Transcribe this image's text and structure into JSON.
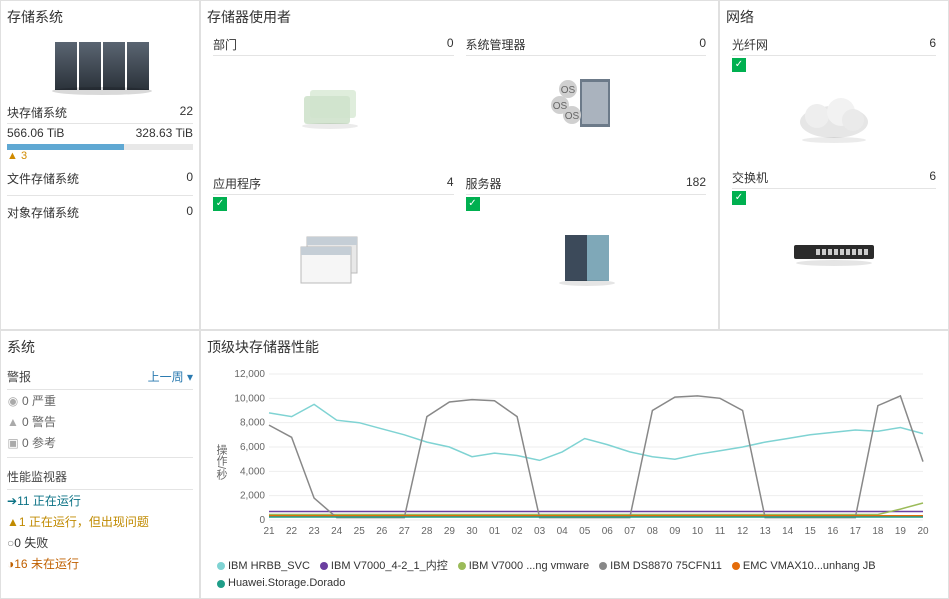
{
  "storage": {
    "title": "存储系统",
    "block": {
      "label": "块存储系统",
      "value": "22"
    },
    "cap_used": "566.06 TiB",
    "cap_total": "328.63 TiB",
    "bar_pct": 63,
    "bar_fill": "#5fa8d3",
    "bar_bg": "#e8e8e8",
    "warn_count": "3",
    "file": {
      "label": "文件存储系统",
      "value": "0"
    },
    "obj": {
      "label": "对象存储系统",
      "value": "0"
    }
  },
  "users": {
    "title": "存储器使用者",
    "cells": {
      "dept": {
        "label": "部门",
        "value": "0",
        "check": false
      },
      "sysmgr": {
        "label": "系统管理器",
        "value": "0",
        "check": false
      },
      "app": {
        "label": "应用程序",
        "value": "4",
        "check": true
      },
      "server": {
        "label": "服务器",
        "value": "182",
        "check": true
      }
    }
  },
  "network": {
    "title": "网络",
    "fc": {
      "label": "光纤网",
      "value": "6",
      "check": true
    },
    "sw": {
      "label": "交换机",
      "value": "6",
      "check": true
    }
  },
  "system": {
    "title": "系统",
    "alarms_label": "警报",
    "dropdown": "上一周 ▾",
    "alarms": {
      "severe": {
        "count": "0",
        "label": "严重"
      },
      "warn": {
        "count": "0",
        "label": "警告"
      },
      "ref": {
        "count": "0",
        "label": "参考"
      }
    },
    "perf_label": "性能监视器",
    "perf": {
      "running": {
        "count": "11",
        "label": "正在运行"
      },
      "warnrun": {
        "count": "1",
        "label": "正在运行，但出现问题"
      },
      "failed": {
        "count": "0",
        "label": "失败"
      },
      "stopped": {
        "count": "16",
        "label": "未在运行"
      }
    }
  },
  "topchart": {
    "title": "顶级块存储器性能",
    "type": "line",
    "ylabel": "操作/秒",
    "ylim": [
      0,
      12000
    ],
    "yticks": [
      0,
      2000,
      4000,
      6000,
      8000,
      10000,
      12000
    ],
    "ytick_labels": [
      "0",
      "2,000",
      "4,000",
      "6,000",
      "8,000",
      "10,000",
      "12,000"
    ],
    "xticks": [
      "21",
      "22",
      "23",
      "24",
      "25",
      "26",
      "27",
      "28",
      "29",
      "30",
      "01",
      "02",
      "03",
      "04",
      "05",
      "06",
      "07",
      "08",
      "09",
      "10",
      "11",
      "12",
      "13",
      "14",
      "15",
      "16",
      "17",
      "18",
      "19",
      "20"
    ],
    "background_color": "#ffffff",
    "grid_color": "#eeeeee",
    "tick_fontsize": 10,
    "tick_color": "#666666",
    "line_width": 1.5,
    "series": [
      {
        "name": "IBM HRBB_SVC",
        "color": "#7fd3d3",
        "values": [
          8800,
          8500,
          9500,
          8200,
          8000,
          7500,
          7000,
          6400,
          6000,
          5200,
          5500,
          5300,
          4900,
          5600,
          6700,
          6200,
          5600,
          5200,
          5000,
          5400,
          5700,
          6000,
          6400,
          6700,
          7000,
          7200,
          7400,
          7300,
          7600,
          7100
        ]
      },
      {
        "name": "IBM V7000_4-2_1_内控",
        "color": "#6b3fa0",
        "values": [
          700,
          700,
          700,
          700,
          700,
          700,
          700,
          700,
          700,
          700,
          700,
          700,
          700,
          700,
          700,
          700,
          700,
          700,
          700,
          700,
          700,
          700,
          700,
          700,
          700,
          700,
          700,
          700,
          700,
          700
        ]
      },
      {
        "name": "IBM V7000 ...ng vmware",
        "color": "#9bbb59",
        "values": [
          450,
          450,
          450,
          450,
          450,
          450,
          450,
          450,
          450,
          450,
          450,
          450,
          450,
          450,
          450,
          450,
          450,
          450,
          450,
          450,
          450,
          450,
          450,
          450,
          450,
          450,
          450,
          450,
          900,
          1400
        ]
      },
      {
        "name": "IBM DS8870 75CFN11",
        "color": "#888888",
        "values": [
          7800,
          6800,
          1800,
          200,
          200,
          200,
          200,
          8500,
          9700,
          9900,
          9800,
          8500,
          200,
          200,
          200,
          200,
          200,
          9000,
          10100,
          10200,
          10000,
          9000,
          200,
          200,
          200,
          200,
          200,
          9400,
          10200,
          4800
        ]
      },
      {
        "name": "EMC VMAX10...unhang JB",
        "color": "#e46c0a",
        "values": [
          350,
          350,
          350,
          350,
          350,
          350,
          350,
          350,
          350,
          350,
          350,
          350,
          350,
          350,
          350,
          350,
          350,
          350,
          350,
          350,
          350,
          350,
          350,
          350,
          350,
          350,
          350,
          350,
          350,
          350
        ]
      },
      {
        "name": "Huawei.Storage.Dorado",
        "color": "#1f9e89",
        "values": [
          250,
          250,
          250,
          250,
          250,
          250,
          250,
          250,
          250,
          250,
          250,
          250,
          250,
          250,
          250,
          250,
          250,
          250,
          250,
          250,
          250,
          250,
          250,
          250,
          250,
          250,
          250,
          250,
          250,
          250
        ]
      }
    ]
  }
}
